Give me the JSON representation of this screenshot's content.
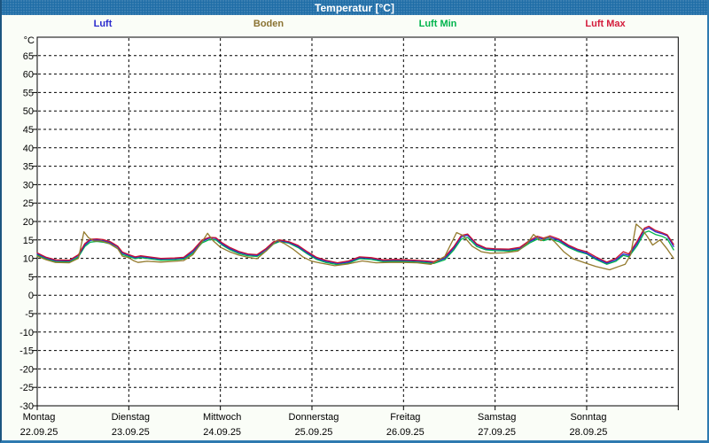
{
  "window": {
    "title": "Temperatur [°C]"
  },
  "legend": [
    {
      "label": "Luft",
      "color": "#2a2acd"
    },
    {
      "label": "Boden",
      "color": "#8b7333"
    },
    {
      "label": "Luft Min",
      "color": "#00b44c"
    },
    {
      "label": "Luft Max",
      "color": "#d41c3c"
    }
  ],
  "chart_data": {
    "type": "line",
    "title": "Temperatur [°C]",
    "y_axis": {
      "unit_label": "°C",
      "ticks": [
        65,
        60,
        55,
        50,
        45,
        40,
        35,
        30,
        25,
        20,
        15,
        10,
        5,
        0,
        -5,
        -10,
        -15,
        -20,
        -25,
        -30
      ],
      "ylim": [
        -30,
        70
      ],
      "grid": "dashed"
    },
    "x_days": [
      {
        "name": "Montag",
        "date": "22.09.25"
      },
      {
        "name": "Dienstag",
        "date": "23.09.25"
      },
      {
        "name": "Mittwoch",
        "date": "24.09.25"
      },
      {
        "name": "Donnerstag",
        "date": "25.09.25"
      },
      {
        "name": "Freitag",
        "date": "26.09.25"
      },
      {
        "name": "Samstag",
        "date": "27.09.25"
      },
      {
        "name": "Sonntag",
        "date": "28.09.25"
      }
    ],
    "x_unit": "days_from_monday_midnight",
    "series": [
      {
        "name": "Luft",
        "color": "#2a2acd",
        "points": [
          [
            0.0,
            11.2
          ],
          [
            0.1,
            10.1
          ],
          [
            0.2,
            9.4
          ],
          [
            0.35,
            9.3
          ],
          [
            0.45,
            10.8
          ],
          [
            0.52,
            13.6
          ],
          [
            0.58,
            14.9
          ],
          [
            0.65,
            15.0
          ],
          [
            0.72,
            14.8
          ],
          [
            0.8,
            14.2
          ],
          [
            0.88,
            13.1
          ],
          [
            0.93,
            11.4
          ],
          [
            1.0,
            10.8
          ],
          [
            1.07,
            10.2
          ],
          [
            1.13,
            10.5
          ],
          [
            1.22,
            10.2
          ],
          [
            1.35,
            9.8
          ],
          [
            1.5,
            9.9
          ],
          [
            1.6,
            10.1
          ],
          [
            1.7,
            11.8
          ],
          [
            1.8,
            14.6
          ],
          [
            1.88,
            15.5
          ],
          [
            1.95,
            15.4
          ],
          [
            2.02,
            13.9
          ],
          [
            2.1,
            12.7
          ],
          [
            2.2,
            11.6
          ],
          [
            2.3,
            11.0
          ],
          [
            2.4,
            10.8
          ],
          [
            2.5,
            12.4
          ],
          [
            2.58,
            14.2
          ],
          [
            2.65,
            14.8
          ],
          [
            2.75,
            14.3
          ],
          [
            2.85,
            13.2
          ],
          [
            2.95,
            11.5
          ],
          [
            3.05,
            10.0
          ],
          [
            3.15,
            9.2
          ],
          [
            3.28,
            8.6
          ],
          [
            3.4,
            9.0
          ],
          [
            3.52,
            10.2
          ],
          [
            3.65,
            10.0
          ],
          [
            3.78,
            9.4
          ],
          [
            3.9,
            9.5
          ],
          [
            4.05,
            9.4
          ],
          [
            4.2,
            9.2
          ],
          [
            4.33,
            8.9
          ],
          [
            4.45,
            10.0
          ],
          [
            4.55,
            12.8
          ],
          [
            4.63,
            15.8
          ],
          [
            4.7,
            16.3
          ],
          [
            4.8,
            13.6
          ],
          [
            4.9,
            12.6
          ],
          [
            5.0,
            12.4
          ],
          [
            5.15,
            12.3
          ],
          [
            5.27,
            12.7
          ],
          [
            5.38,
            14.6
          ],
          [
            5.46,
            15.6
          ],
          [
            5.53,
            15.2
          ],
          [
            5.6,
            15.7
          ],
          [
            5.7,
            14.9
          ],
          [
            5.8,
            13.3
          ],
          [
            5.9,
            12.2
          ],
          [
            6.0,
            11.4
          ],
          [
            6.1,
            10.0
          ],
          [
            6.22,
            8.7
          ],
          [
            6.32,
            9.6
          ],
          [
            6.4,
            11.2
          ],
          [
            6.46,
            10.8
          ],
          [
            6.55,
            14.0
          ],
          [
            6.63,
            17.8
          ],
          [
            6.68,
            18.3
          ],
          [
            6.75,
            17.2
          ],
          [
            6.82,
            16.7
          ],
          [
            6.88,
            16.1
          ],
          [
            6.95,
            13.2
          ]
        ]
      },
      {
        "name": "Boden",
        "color": "#937a2c",
        "points": [
          [
            0.0,
            10.6
          ],
          [
            0.1,
            9.6
          ],
          [
            0.2,
            8.9
          ],
          [
            0.35,
            8.8
          ],
          [
            0.45,
            10.0
          ],
          [
            0.51,
            17.2
          ],
          [
            0.56,
            15.6
          ],
          [
            0.62,
            14.7
          ],
          [
            0.7,
            14.7
          ],
          [
            0.78,
            14.1
          ],
          [
            0.88,
            12.6
          ],
          [
            0.93,
            10.6
          ],
          [
            1.0,
            10.2
          ],
          [
            1.05,
            9.4
          ],
          [
            1.1,
            8.9
          ],
          [
            1.2,
            9.2
          ],
          [
            1.35,
            9.0
          ],
          [
            1.5,
            9.2
          ],
          [
            1.6,
            9.4
          ],
          [
            1.7,
            11.0
          ],
          [
            1.8,
            14.5
          ],
          [
            1.86,
            16.8
          ],
          [
            1.92,
            14.8
          ],
          [
            2.0,
            13.0
          ],
          [
            2.1,
            11.8
          ],
          [
            2.2,
            10.9
          ],
          [
            2.3,
            10.3
          ],
          [
            2.4,
            9.9
          ],
          [
            2.5,
            12.0
          ],
          [
            2.62,
            14.9
          ],
          [
            2.7,
            14.0
          ],
          [
            2.8,
            12.4
          ],
          [
            2.9,
            10.4
          ],
          [
            3.0,
            9.2
          ],
          [
            3.1,
            8.7
          ],
          [
            3.25,
            8.0
          ],
          [
            3.4,
            8.5
          ],
          [
            3.55,
            9.3
          ],
          [
            3.7,
            8.8
          ],
          [
            3.85,
            8.9
          ],
          [
            4.0,
            8.9
          ],
          [
            4.15,
            8.8
          ],
          [
            4.3,
            8.4
          ],
          [
            4.45,
            10.5
          ],
          [
            4.52,
            14.0
          ],
          [
            4.58,
            17.0
          ],
          [
            4.65,
            16.2
          ],
          [
            4.75,
            13.3
          ],
          [
            4.85,
            11.8
          ],
          [
            4.95,
            11.4
          ],
          [
            5.1,
            11.5
          ],
          [
            5.25,
            12.0
          ],
          [
            5.35,
            14.0
          ],
          [
            5.42,
            16.5
          ],
          [
            5.5,
            14.8
          ],
          [
            5.58,
            15.9
          ],
          [
            5.65,
            14.5
          ],
          [
            5.75,
            11.8
          ],
          [
            5.85,
            9.9
          ],
          [
            6.0,
            8.6
          ],
          [
            6.1,
            7.8
          ],
          [
            6.25,
            6.9
          ],
          [
            6.35,
            7.8
          ],
          [
            6.42,
            8.4
          ],
          [
            6.48,
            11.0
          ],
          [
            6.54,
            19.3
          ],
          [
            6.6,
            18.0
          ],
          [
            6.66,
            16.0
          ],
          [
            6.72,
            13.6
          ],
          [
            6.8,
            15.0
          ],
          [
            6.88,
            12.5
          ],
          [
            6.95,
            10.0
          ]
        ]
      },
      {
        "name": "Luft Min",
        "color": "#00b44c",
        "points": [
          [
            0.0,
            10.9
          ],
          [
            0.1,
            9.8
          ],
          [
            0.2,
            9.1
          ],
          [
            0.35,
            9.0
          ],
          [
            0.45,
            10.4
          ],
          [
            0.52,
            13.2
          ],
          [
            0.58,
            14.4
          ],
          [
            0.65,
            14.6
          ],
          [
            0.72,
            14.4
          ],
          [
            0.8,
            13.9
          ],
          [
            0.88,
            12.7
          ],
          [
            0.93,
            11.0
          ],
          [
            1.0,
            10.5
          ],
          [
            1.07,
            9.9
          ],
          [
            1.13,
            10.2
          ],
          [
            1.22,
            9.9
          ],
          [
            1.35,
            9.5
          ],
          [
            1.5,
            9.6
          ],
          [
            1.6,
            9.8
          ],
          [
            1.7,
            11.4
          ],
          [
            1.8,
            14.2
          ],
          [
            1.88,
            15.1
          ],
          [
            1.95,
            15.0
          ],
          [
            2.02,
            13.6
          ],
          [
            2.1,
            12.4
          ],
          [
            2.2,
            11.3
          ],
          [
            2.3,
            10.7
          ],
          [
            2.4,
            10.5
          ],
          [
            2.5,
            12.0
          ],
          [
            2.58,
            13.9
          ],
          [
            2.65,
            14.6
          ],
          [
            2.75,
            14.1
          ],
          [
            2.85,
            12.9
          ],
          [
            2.95,
            11.2
          ],
          [
            3.05,
            9.7
          ],
          [
            3.15,
            8.9
          ],
          [
            3.28,
            8.3
          ],
          [
            3.4,
            8.7
          ],
          [
            3.52,
            9.9
          ],
          [
            3.65,
            9.7
          ],
          [
            3.78,
            9.1
          ],
          [
            3.9,
            9.2
          ],
          [
            4.05,
            9.1
          ],
          [
            4.2,
            8.9
          ],
          [
            4.33,
            8.6
          ],
          [
            4.45,
            9.6
          ],
          [
            4.55,
            12.3
          ],
          [
            4.63,
            15.2
          ],
          [
            4.7,
            15.7
          ],
          [
            4.8,
            13.2
          ],
          [
            4.9,
            12.3
          ],
          [
            5.0,
            12.1
          ],
          [
            5.15,
            12.0
          ],
          [
            5.27,
            12.4
          ],
          [
            5.38,
            14.2
          ],
          [
            5.46,
            15.2
          ],
          [
            5.53,
            14.8
          ],
          [
            5.6,
            15.3
          ],
          [
            5.7,
            14.5
          ],
          [
            5.8,
            13.0
          ],
          [
            5.9,
            11.9
          ],
          [
            6.0,
            11.2
          ],
          [
            6.1,
            9.7
          ],
          [
            6.22,
            8.4
          ],
          [
            6.32,
            9.2
          ],
          [
            6.4,
            10.8
          ],
          [
            6.46,
            10.4
          ],
          [
            6.55,
            13.4
          ],
          [
            6.63,
            17.0
          ],
          [
            6.68,
            17.4
          ],
          [
            6.75,
            16.5
          ],
          [
            6.82,
            16.0
          ],
          [
            6.88,
            15.3
          ],
          [
            6.95,
            12.3
          ]
        ]
      },
      {
        "name": "Luft Max",
        "color": "#c81430",
        "points": [
          [
            0.0,
            11.5
          ],
          [
            0.1,
            10.3
          ],
          [
            0.2,
            9.6
          ],
          [
            0.35,
            9.5
          ],
          [
            0.45,
            11.0
          ],
          [
            0.52,
            14.0
          ],
          [
            0.58,
            15.2
          ],
          [
            0.65,
            15.3
          ],
          [
            0.72,
            15.1
          ],
          [
            0.8,
            14.5
          ],
          [
            0.88,
            13.3
          ],
          [
            0.93,
            11.7
          ],
          [
            1.0,
            11.0
          ],
          [
            1.07,
            10.4
          ],
          [
            1.13,
            10.7
          ],
          [
            1.22,
            10.4
          ],
          [
            1.35,
            10.0
          ],
          [
            1.5,
            10.1
          ],
          [
            1.6,
            10.3
          ],
          [
            1.7,
            12.2
          ],
          [
            1.8,
            15.0
          ],
          [
            1.88,
            15.7
          ],
          [
            1.95,
            15.6
          ],
          [
            2.02,
            14.2
          ],
          [
            2.1,
            13.0
          ],
          [
            2.2,
            11.9
          ],
          [
            2.3,
            11.2
          ],
          [
            2.4,
            11.0
          ],
          [
            2.5,
            12.7
          ],
          [
            2.58,
            14.5
          ],
          [
            2.65,
            15.0
          ],
          [
            2.75,
            14.5
          ],
          [
            2.85,
            13.5
          ],
          [
            2.95,
            11.8
          ],
          [
            3.05,
            10.3
          ],
          [
            3.15,
            9.5
          ],
          [
            3.28,
            8.8
          ],
          [
            3.4,
            9.3
          ],
          [
            3.52,
            10.4
          ],
          [
            3.65,
            10.2
          ],
          [
            3.78,
            9.6
          ],
          [
            3.9,
            9.7
          ],
          [
            4.05,
            9.6
          ],
          [
            4.2,
            9.4
          ],
          [
            4.33,
            9.1
          ],
          [
            4.45,
            10.4
          ],
          [
            4.55,
            13.2
          ],
          [
            4.63,
            16.2
          ],
          [
            4.7,
            16.6
          ],
          [
            4.8,
            13.9
          ],
          [
            4.9,
            12.8
          ],
          [
            5.0,
            12.6
          ],
          [
            5.15,
            12.5
          ],
          [
            5.27,
            13.0
          ],
          [
            5.38,
            14.9
          ],
          [
            5.46,
            16.0
          ],
          [
            5.53,
            15.5
          ],
          [
            5.6,
            16.1
          ],
          [
            5.7,
            15.2
          ],
          [
            5.8,
            13.6
          ],
          [
            5.9,
            12.5
          ],
          [
            6.0,
            11.8
          ],
          [
            6.1,
            10.4
          ],
          [
            6.22,
            9.0
          ],
          [
            6.32,
            10.0
          ],
          [
            6.4,
            11.8
          ],
          [
            6.46,
            11.2
          ],
          [
            6.55,
            14.6
          ],
          [
            6.63,
            18.2
          ],
          [
            6.68,
            18.7
          ],
          [
            6.75,
            17.6
          ],
          [
            6.82,
            17.0
          ],
          [
            6.88,
            16.4
          ],
          [
            6.95,
            13.8
          ]
        ]
      }
    ]
  }
}
